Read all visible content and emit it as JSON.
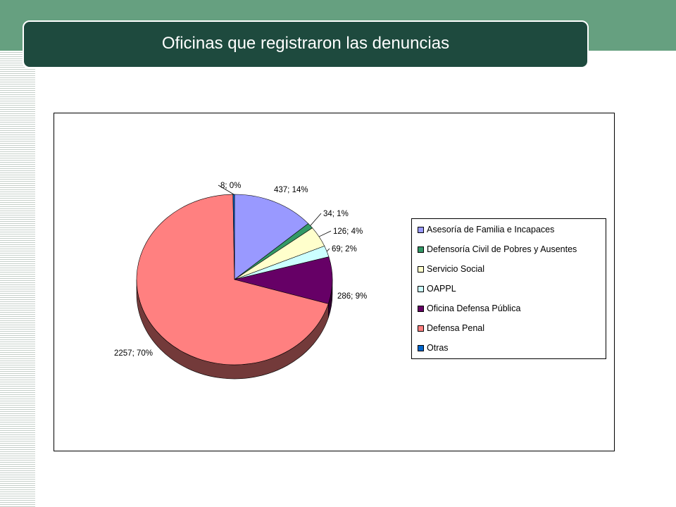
{
  "title": "Oficinas que registraron las denuncias",
  "colors": {
    "top_band": "#66a080",
    "title_bar": "#1e4a3e",
    "title_text": "#ffffff"
  },
  "chart_data": {
    "type": "pie",
    "title": "",
    "legend_position": "right",
    "series": [
      {
        "name": "Asesoría de Familia e Incapaces",
        "value": 437,
        "percent": "14%",
        "label": "437; 14%",
        "color": "#9999ff"
      },
      {
        "name": "Defensoría Civil de Pobres y Ausentes",
        "value": 34,
        "percent": "1%",
        "label": "34; 1%",
        "color": "#339966"
      },
      {
        "name": "Servicio Social",
        "value": 126,
        "percent": "4%",
        "label": "126; 4%",
        "color": "#ffffcc"
      },
      {
        "name": "OAPPL",
        "value": 69,
        "percent": "2%",
        "label": "69; 2%",
        "color": "#ccffff"
      },
      {
        "name": "Oficina Defensa Pública",
        "value": 286,
        "percent": "9%",
        "label": "286; 9%",
        "color": "#660066"
      },
      {
        "name": "Defensa Penal",
        "value": 2257,
        "percent": "70%",
        "label": "2257; 70%",
        "color": "#ff8080"
      },
      {
        "name": "Otras",
        "value": 8,
        "percent": "0%",
        "label": "8; 0%",
        "color": "#0066cc"
      }
    ]
  }
}
